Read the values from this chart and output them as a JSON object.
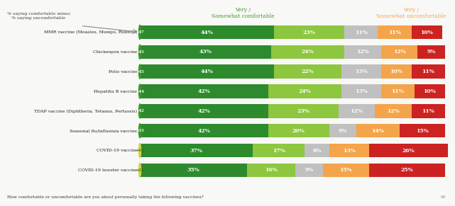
{
  "vaccines": [
    "MMR vaccine (Measles, Mumps, Rubella)",
    "Chickenpox vaccine",
    "Polio vaccine",
    "Hepatitis B vaccine",
    "TDAP vaccine (Diphtheria, Tetanus, Pertussis)",
    "Seasonal flu/influenza vaccine",
    "COVID-19 vaccine",
    "COVID-19 booster vaccine"
  ],
  "labels": [
    "+47",
    "+45",
    "+45",
    "+44",
    "+42",
    "+33",
    "+16",
    "+11"
  ],
  "segments": [
    [
      44,
      23,
      11,
      11,
      10
    ],
    [
      43,
      24,
      12,
      12,
      9
    ],
    [
      44,
      22,
      13,
      10,
      11
    ],
    [
      42,
      24,
      13,
      11,
      10
    ],
    [
      42,
      23,
      12,
      12,
      11
    ],
    [
      42,
      20,
      9,
      14,
      15
    ],
    [
      37,
      17,
      8,
      13,
      26
    ],
    [
      35,
      16,
      9,
      15,
      25
    ]
  ],
  "colors": [
    "#2d8a2d",
    "#8dc63f",
    "#c0c0c0",
    "#f4a44a",
    "#cc2222"
  ],
  "label_bg_colors": [
    "#3a9a2a",
    "#3a9a2a",
    "#3a9a2a",
    "#3a9a2a",
    "#3a9a2a",
    "#3a9a2a",
    "#c8d84a",
    "#c8d84a"
  ],
  "label_text_colors": [
    "white",
    "white",
    "white",
    "white",
    "white",
    "white",
    "#5a5a10",
    "#5a5a10"
  ],
  "bg_color": "#f8f8f6",
  "annotation": "% saying comfortable minus\n% saying uncomfortable",
  "header_left": "Very /\nSomewhat comfortable",
  "header_right": "Very /\nSomewhat uncomfortable",
  "header_left_color": "#3a9a2a",
  "header_right_color": "#f4a44a",
  "footer": "How comfortable or uncomfortable are you about personally taking the following vaccines?",
  "page_num": "66"
}
